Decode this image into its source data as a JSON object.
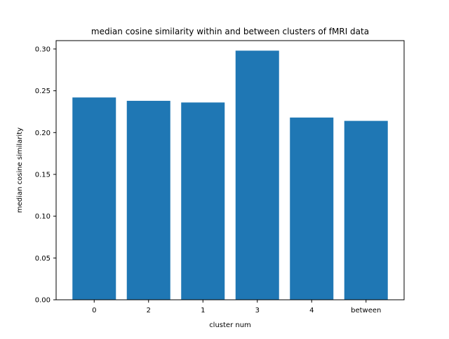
{
  "chart_data": {
    "type": "bar",
    "title": "median cosine similarity within and between clusters of fMRI data",
    "xlabel": "cluster num",
    "ylabel": "median cosine similarity",
    "categories": [
      "0",
      "2",
      "1",
      "3",
      "4",
      "between"
    ],
    "values": [
      0.242,
      0.238,
      0.236,
      0.298,
      0.218,
      0.214
    ],
    "ylim": [
      0,
      0.31
    ],
    "yticks": [
      "0.00",
      "0.05",
      "0.10",
      "0.15",
      "0.20",
      "0.25",
      "0.30"
    ],
    "bar_color": "#1f77b4",
    "grid": false,
    "legend": "none"
  }
}
